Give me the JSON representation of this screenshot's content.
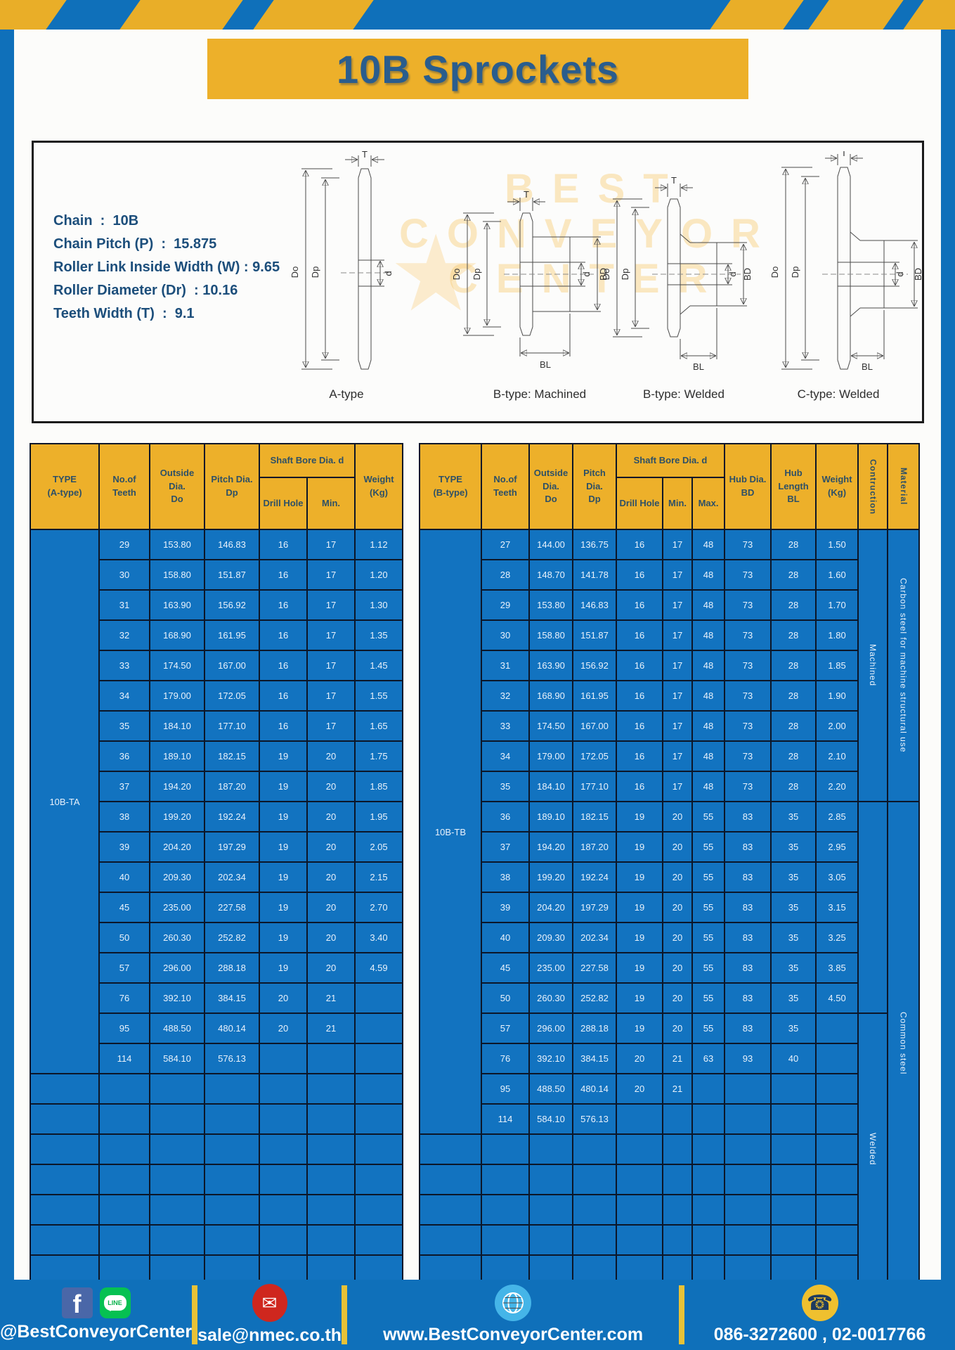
{
  "title": "10B Sprockets",
  "specs": [
    "Chain  :  10B",
    "Chain Pitch (P)  :  15.875",
    "Roller Link Inside Width (W) : 9.65",
    "Roller Diameter (Dr)  : 10.16",
    "Teeth Width (T)  :  9.1"
  ],
  "dims": {
    "t": "T",
    "do": "Do",
    "dp": "Dp",
    "d": "d",
    "bd": "BD",
    "bl": "BL"
  },
  "diagram_types": [
    "A-type",
    "B-type: Machined",
    "B-type: Welded",
    "C-type: Welded"
  ],
  "watermark": [
    "BEST",
    "CONVEYOR",
    "CENTER"
  ],
  "table_a": {
    "type_label": "10B-TA",
    "cols": 6,
    "empty_rows": 7,
    "headers": {
      "type": "TYPE\n(A-type)",
      "teeth": "No.of\nTeeth",
      "outside": "Outside\nDia.\nDo",
      "pitch": "Pitch Dia.\nDp",
      "shaft": "Shaft Bore Dia. d",
      "drill": "Drill Hole",
      "min": "Min.",
      "weight": "Weight\n(Kg)"
    },
    "rows": [
      [
        "29",
        "153.80",
        "146.83",
        "16",
        "17",
        "1.12"
      ],
      [
        "30",
        "158.80",
        "151.87",
        "16",
        "17",
        "1.20"
      ],
      [
        "31",
        "163.90",
        "156.92",
        "16",
        "17",
        "1.30"
      ],
      [
        "32",
        "168.90",
        "161.95",
        "16",
        "17",
        "1.35"
      ],
      [
        "33",
        "174.50",
        "167.00",
        "16",
        "17",
        "1.45"
      ],
      [
        "34",
        "179.00",
        "172.05",
        "16",
        "17",
        "1.55"
      ],
      [
        "35",
        "184.10",
        "177.10",
        "16",
        "17",
        "1.65"
      ],
      [
        "36",
        "189.10",
        "182.15",
        "19",
        "20",
        "1.75"
      ],
      [
        "37",
        "194.20",
        "187.20",
        "19",
        "20",
        "1.85"
      ],
      [
        "38",
        "199.20",
        "192.24",
        "19",
        "20",
        "1.95"
      ],
      [
        "39",
        "204.20",
        "197.29",
        "19",
        "20",
        "2.05"
      ],
      [
        "40",
        "209.30",
        "202.34",
        "19",
        "20",
        "2.15"
      ],
      [
        "45",
        "235.00",
        "227.58",
        "19",
        "20",
        "2.70"
      ],
      [
        "50",
        "260.30",
        "252.82",
        "19",
        "20",
        "3.40"
      ],
      [
        "57",
        "296.00",
        "288.18",
        "19",
        "20",
        "4.59"
      ],
      [
        "76",
        "392.10",
        "384.15",
        "20",
        "21",
        ""
      ],
      [
        "95",
        "488.50",
        "480.14",
        "20",
        "21",
        ""
      ],
      [
        "114",
        "584.10",
        "576.13",
        "",
        "",
        ""
      ]
    ]
  },
  "table_b": {
    "type_label": "10B-TB",
    "cols": 9,
    "empty_rows": 5,
    "headers": {
      "type": "TYPE\n(B-type)",
      "teeth": "No.of\nTeeth",
      "outside": "Outside\nDia.\nDo",
      "pitch": "Pitch Dia.\nDp",
      "shaft": "Shaft Bore Dia. d",
      "drill": "Drill Hole",
      "min": "Min.",
      "max": "Max.",
      "hub_dia": "Hub Dia.\nBD",
      "hub_len": "Hub\nLength\nBL",
      "weight": "Weight\n(Kg)",
      "construction": "Contruction",
      "material": "Material"
    },
    "rows": [
      [
        "27",
        "144.00",
        "136.75",
        "16",
        "17",
        "48",
        "73",
        "28",
        "1.50"
      ],
      [
        "28",
        "148.70",
        "141.78",
        "16",
        "17",
        "48",
        "73",
        "28",
        "1.60"
      ],
      [
        "29",
        "153.80",
        "146.83",
        "16",
        "17",
        "48",
        "73",
        "28",
        "1.70"
      ],
      [
        "30",
        "158.80",
        "151.87",
        "16",
        "17",
        "48",
        "73",
        "28",
        "1.80"
      ],
      [
        "31",
        "163.90",
        "156.92",
        "16",
        "17",
        "48",
        "73",
        "28",
        "1.85"
      ],
      [
        "32",
        "168.90",
        "161.95",
        "16",
        "17",
        "48",
        "73",
        "28",
        "1.90"
      ],
      [
        "33",
        "174.50",
        "167.00",
        "16",
        "17",
        "48",
        "73",
        "28",
        "2.00"
      ],
      [
        "34",
        "179.00",
        "172.05",
        "16",
        "17",
        "48",
        "73",
        "28",
        "2.10"
      ],
      [
        "35",
        "184.10",
        "177.10",
        "16",
        "17",
        "48",
        "73",
        "28",
        "2.20"
      ],
      [
        "36",
        "189.10",
        "182.15",
        "19",
        "20",
        "55",
        "83",
        "35",
        "2.85"
      ],
      [
        "37",
        "194.20",
        "187.20",
        "19",
        "20",
        "55",
        "83",
        "35",
        "2.95"
      ],
      [
        "38",
        "199.20",
        "192.24",
        "19",
        "20",
        "55",
        "83",
        "35",
        "3.05"
      ],
      [
        "39",
        "204.20",
        "197.29",
        "19",
        "20",
        "55",
        "83",
        "35",
        "3.15"
      ],
      [
        "40",
        "209.30",
        "202.34",
        "19",
        "20",
        "55",
        "83",
        "35",
        "3.25"
      ],
      [
        "45",
        "235.00",
        "227.58",
        "19",
        "20",
        "55",
        "83",
        "35",
        "3.85"
      ],
      [
        "50",
        "260.30",
        "252.82",
        "19",
        "20",
        "55",
        "83",
        "35",
        "4.50"
      ],
      [
        "57",
        "296.00",
        "288.18",
        "19",
        "20",
        "55",
        "83",
        "35",
        ""
      ],
      [
        "76",
        "392.10",
        "384.15",
        "20",
        "21",
        "63",
        "93",
        "40",
        ""
      ],
      [
        "95",
        "488.50",
        "480.14",
        "20",
        "21",
        "",
        "",
        "",
        ""
      ],
      [
        "114",
        "584.10",
        "576.13",
        "",
        "",
        "",
        "",
        "",
        ""
      ]
    ],
    "merged_cols": [
      {
        "name": "construction",
        "cells": [
          {
            "start": 0,
            "rows": 9,
            "label": "Machined"
          },
          {
            "start": 9,
            "rows": 7,
            "label": ""
          },
          {
            "start": 16,
            "rows": 9,
            "label": "Welded"
          }
        ]
      },
      {
        "name": "material",
        "cells": [
          {
            "start": 0,
            "rows": 9,
            "label": "Carbon steel for machine structural use"
          },
          {
            "start": 9,
            "rows": 16,
            "label": "Common steel"
          }
        ]
      }
    ]
  },
  "footer": {
    "facebook_label": "f",
    "line_label": "LINE",
    "social_handle": "@BestConveyorCenter",
    "email": "sale@nmec.co.th",
    "website": "www.BestConveyorCenter.com",
    "phones": "086-3272600 , 02-0017766"
  },
  "colors": {
    "frame_blue": "#0f70ba",
    "cell_blue": "#1273c0",
    "yellow": "#edb02a",
    "border_navy": "#0c1628"
  }
}
